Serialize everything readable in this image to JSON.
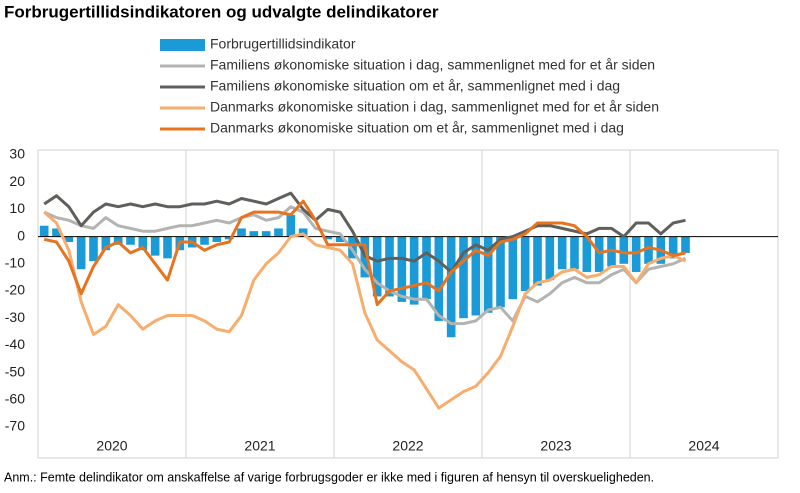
{
  "title": "Forbrugertillidsindikatoren og udvalgte delindikatorer",
  "note": "Anm.: Femte delindikator om anskaffelse af varige forbrugsgoder er ikke med i figuren af hensyn til overskueligheden.",
  "chart_data": {
    "type": "bar-line",
    "categories": [
      null,
      null,
      null,
      null,
      null,
      null,
      "2020",
      null,
      null,
      null,
      null,
      null,
      null,
      null,
      null,
      null,
      null,
      null,
      "2021",
      null,
      null,
      null,
      null,
      null,
      null,
      null,
      null,
      null,
      null,
      null,
      "2022",
      null,
      null,
      null,
      null,
      null,
      null,
      null,
      null,
      null,
      null,
      null,
      "2023",
      null,
      null,
      null,
      null,
      null,
      null,
      null,
      null,
      null,
      null,
      null,
      "2024",
      null,
      null,
      null,
      null,
      null
    ],
    "ylim": [
      -70,
      30
    ],
    "yticks": [
      -70,
      -60,
      -50,
      -40,
      -30,
      -20,
      -10,
      0,
      10,
      20,
      30
    ],
    "legend": "top-left",
    "series": [
      {
        "name": "Forbrugertillidsindikator",
        "type": "bar",
        "color": "#1a9bd7",
        "values": [
          4,
          3,
          -2,
          -12,
          -9,
          -5,
          -3,
          -3,
          -5,
          -7,
          -8,
          -5,
          -4,
          -3,
          -2,
          -1,
          3,
          2,
          2,
          3,
          8,
          3,
          0,
          -1,
          -2,
          -8,
          -15,
          -22,
          -22,
          -24,
          -25,
          -23,
          -31,
          -37,
          -30,
          -29,
          -28,
          -26,
          -23,
          -20,
          -18,
          -16,
          -12,
          -12,
          -13,
          -13,
          -11,
          -10,
          -13,
          -10,
          -10,
          -8,
          -6,
          null,
          null,
          null,
          null,
          null,
          null,
          null
        ]
      },
      {
        "name": "Familiens økonomiske situation i dag, sammenlignet med for et år siden",
        "type": "line",
        "color": "#b3b3b1",
        "values": [
          9,
          7,
          6,
          4,
          3,
          7,
          4,
          3,
          2,
          2,
          3,
          4,
          4,
          5,
          6,
          5,
          7,
          8,
          6,
          7,
          11,
          9,
          3,
          2,
          1,
          -5,
          -12,
          -17,
          -20,
          -22,
          -23,
          -23,
          -29,
          -32,
          -32,
          -31,
          -27,
          -26,
          -31,
          -22,
          -24,
          -21,
          -17,
          -15,
          -17,
          -17,
          -14,
          -12,
          -17,
          -12,
          -11,
          -10,
          -8,
          null,
          null,
          null,
          null,
          null,
          null,
          null
        ]
      },
      {
        "name": "Familiens økonomiske situation om et år, sammenlignet med i dag",
        "type": "line",
        "color": "#5f5f5b",
        "values": [
          12,
          15,
          11,
          4,
          9,
          12,
          11,
          12,
          11,
          12,
          11,
          11,
          12,
          12,
          13,
          12,
          14,
          13,
          12,
          14,
          16,
          10,
          6,
          10,
          9,
          2,
          -7,
          -9,
          -8,
          -8,
          -9,
          -6,
          -9,
          -13,
          -6,
          -3,
          -5,
          -1,
          0,
          2,
          4,
          4,
          3,
          2,
          1,
          3,
          3,
          0,
          5,
          5,
          1,
          5,
          6,
          null,
          null,
          null,
          null,
          null,
          null,
          null
        ]
      },
      {
        "name": "Danmarks økonomiske situation i dag, sammenlignet med for et år siden",
        "type": "line",
        "color": "#f6ad6d",
        "values": [
          9,
          5,
          -5,
          -24,
          -36,
          -33,
          -25,
          -29,
          -34,
          -31,
          -29,
          -29,
          -29,
          -31,
          -34,
          -35,
          -29,
          -16,
          -10,
          -6,
          0,
          1,
          -3,
          -4,
          -5,
          -10,
          -28,
          -38,
          -42,
          -46,
          -49,
          -56,
          -63,
          -60,
          -57,
          -55,
          -50,
          -44,
          -33,
          -21,
          -17,
          -16,
          -13,
          -12,
          -15,
          -14,
          -11,
          -11,
          -17,
          -10,
          -8,
          -7,
          -9,
          null,
          null,
          null,
          null,
          null,
          null,
          null
        ]
      },
      {
        "name": "Danmarks økonomiske situation om et år, sammenlignet med i dag",
        "type": "line",
        "color": "#e8731e",
        "values": [
          -1,
          -2,
          -9,
          -21,
          -11,
          -4,
          -2,
          -6,
          -4,
          -10,
          -16,
          -2,
          -2,
          -5,
          -3,
          -2,
          7,
          9,
          9,
          9,
          8,
          13,
          6,
          -3,
          -3,
          -3,
          -3,
          -25,
          -20,
          -19,
          -18,
          -17,
          -20,
          -13,
          -9,
          -5,
          -7,
          -2,
          -1,
          1,
          5,
          5,
          5,
          4,
          0,
          -6,
          -5,
          -6,
          -6,
          -4,
          -5,
          -7,
          -6,
          null,
          null,
          null,
          null,
          null,
          null,
          null
        ]
      }
    ]
  }
}
